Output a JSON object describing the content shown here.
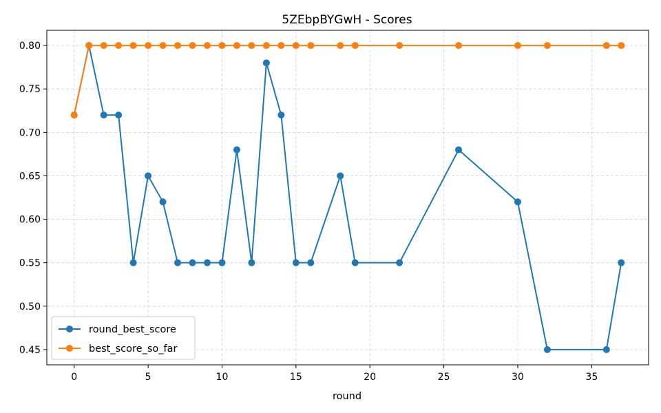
{
  "chart_data": {
    "type": "line",
    "title": "5ZEbpBYGwH - Scores",
    "xlabel": "round",
    "ylabel": "",
    "xlim": [
      -1.85,
      38.85
    ],
    "ylim": [
      0.4325,
      0.8175
    ],
    "xticks": [
      0,
      5,
      10,
      15,
      20,
      25,
      30,
      35
    ],
    "yticks": [
      0.45,
      0.5,
      0.55,
      0.6,
      0.65,
      0.7,
      0.75,
      0.8
    ],
    "ytick_labels": [
      "0.45",
      "0.50",
      "0.55",
      "0.60",
      "0.65",
      "0.70",
      "0.75",
      "0.80"
    ],
    "grid": true,
    "legend_position": "lower-left",
    "x": [
      0,
      1,
      2,
      3,
      4,
      5,
      6,
      7,
      8,
      9,
      10,
      11,
      12,
      13,
      14,
      15,
      16,
      18,
      19,
      22,
      26,
      30,
      32,
      36,
      37
    ],
    "series": [
      {
        "name": "round_best_score",
        "color": "#1f77b4",
        "values": [
          0.72,
          0.8,
          0.72,
          0.72,
          0.55,
          0.65,
          0.62,
          0.55,
          0.55,
          0.55,
          0.55,
          0.68,
          0.55,
          0.78,
          0.72,
          0.55,
          0.55,
          0.65,
          0.55,
          0.55,
          0.68,
          0.62,
          0.45,
          0.45,
          0.55
        ]
      },
      {
        "name": "best_score_so_far",
        "color": "#ff7f0e",
        "values": [
          0.72,
          0.8,
          0.8,
          0.8,
          0.8,
          0.8,
          0.8,
          0.8,
          0.8,
          0.8,
          0.8,
          0.8,
          0.8,
          0.8,
          0.8,
          0.8,
          0.8,
          0.8,
          0.8,
          0.8,
          0.8,
          0.8,
          0.8,
          0.8,
          0.8
        ]
      }
    ]
  }
}
